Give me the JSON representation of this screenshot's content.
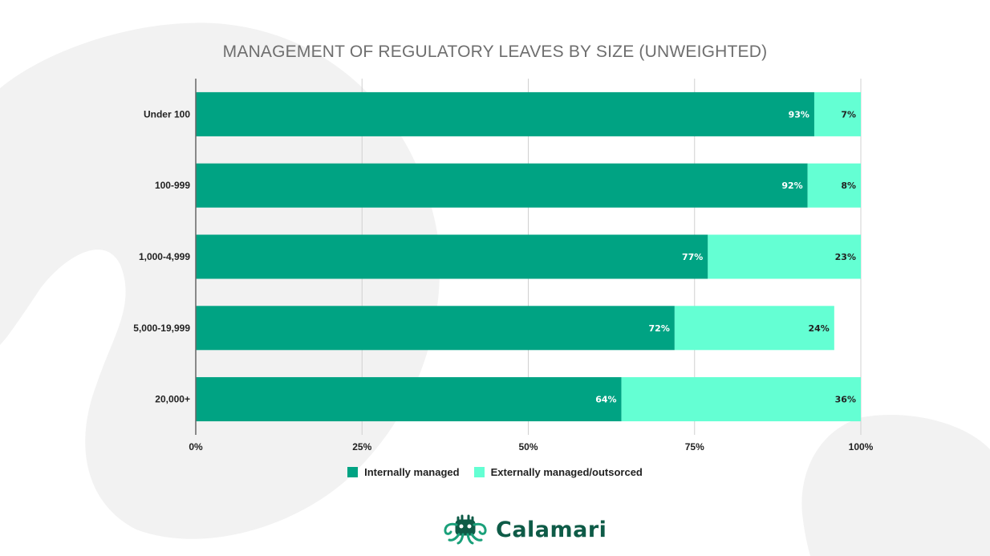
{
  "brand": {
    "name": "Calamari"
  },
  "colors": {
    "internal": "#00a383",
    "external": "#64ffd3",
    "brand": "#0e5b47"
  },
  "chart_data": {
    "type": "bar",
    "orientation": "horizontal",
    "stacked": true,
    "title": "MANAGEMENT OF REGULATORY LEAVES BY SIZE (UNWEIGHTED)",
    "categories": [
      "Under 100",
      "100-999",
      "1,000-4,999",
      "5,000-19,999",
      "20,000+"
    ],
    "series": [
      {
        "name": "Internally managed",
        "values": [
          93,
          92,
          77,
          72,
          64
        ],
        "labels": [
          "93%",
          "92%",
          "77%",
          "72%",
          "64%"
        ]
      },
      {
        "name": "Externally managed/outsorced",
        "values": [
          7,
          8,
          23,
          24,
          36
        ],
        "labels": [
          "7%",
          "8%",
          "23%",
          "24%",
          "36%"
        ]
      }
    ],
    "xlim": [
      0,
      100
    ],
    "x_ticks": [
      0,
      25,
      50,
      75,
      100
    ],
    "x_tick_labels": [
      "0%",
      "25%",
      "50%",
      "75%",
      "100%"
    ],
    "grid": true,
    "legend_position": "bottom"
  }
}
